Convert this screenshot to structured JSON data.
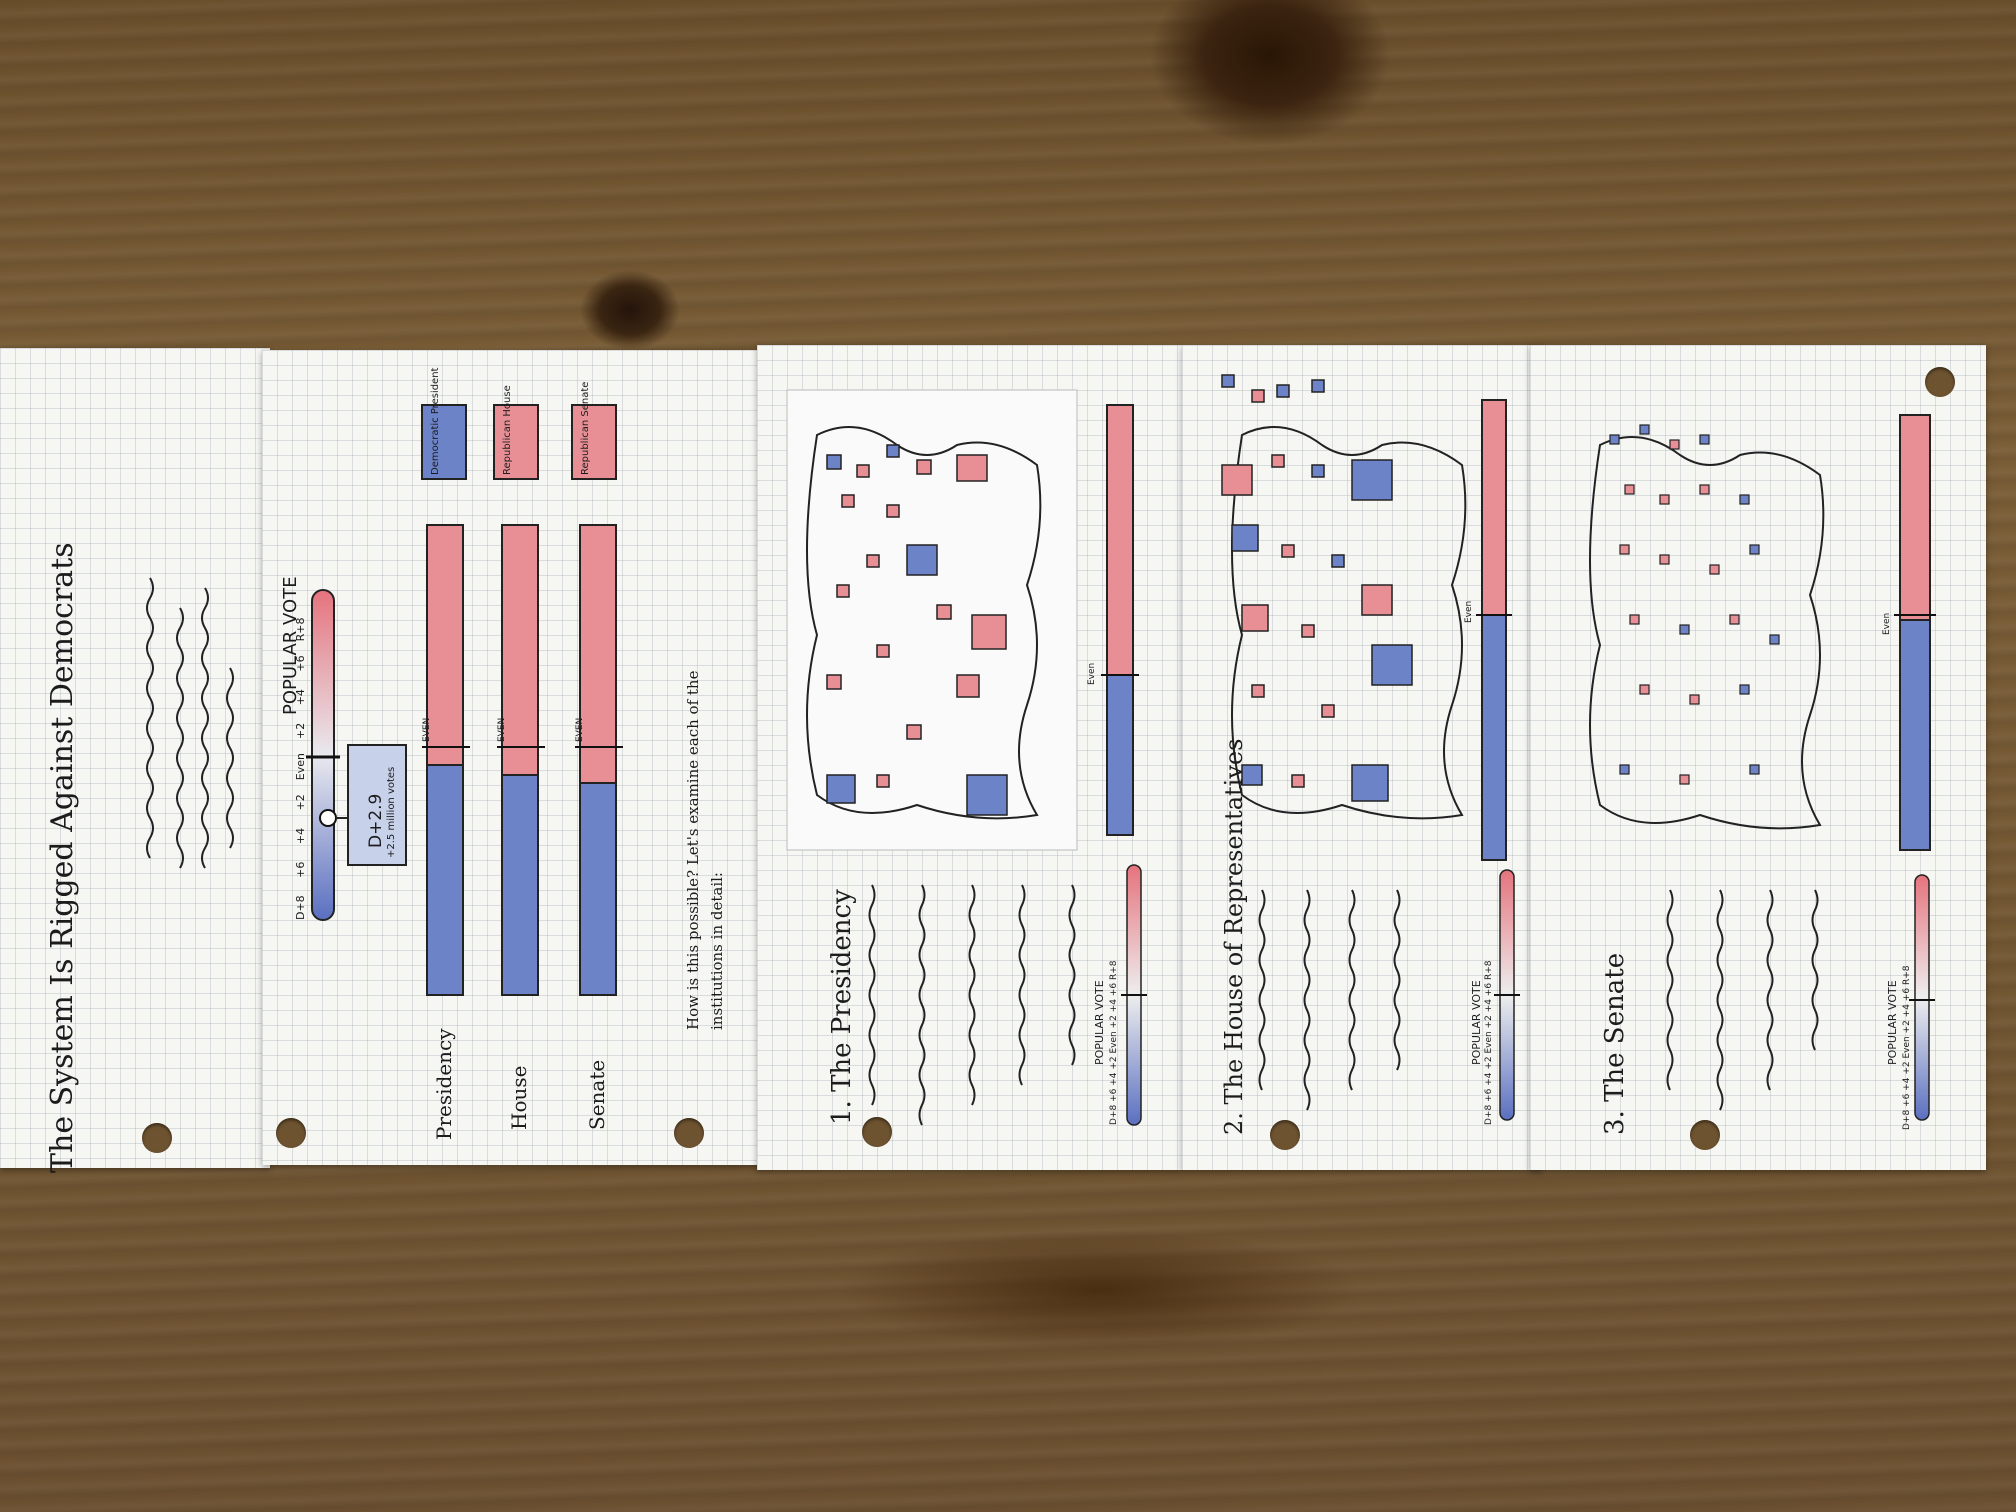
{
  "page": {
    "title": "The System Is Rigged Against Democrats",
    "popular_vote_label": "POPULAR VOTE",
    "scale_ticks": [
      "D+8",
      "+6",
      "+4",
      "+2",
      "Even",
      "+2",
      "+4",
      "+6",
      "R+8"
    ],
    "callout_main": "D+2.9",
    "callout_sub": "+2.5 million votes",
    "rows": [
      {
        "label": "Presidency",
        "legend": "Democratic President"
      },
      {
        "label": "House",
        "legend": "Republican House"
      },
      {
        "label": "Senate",
        "legend": "Republican Senate"
      }
    ],
    "even_label": "EVEN",
    "question": "How is this possible? Let's examine each of the",
    "question_line2": "institutions in detail:"
  },
  "sections": [
    {
      "title": "1. The Presidency",
      "pv_label": "POPULAR VOTE",
      "pv_ticks": "D+8 +6 +4 +2 Even +2 +4 +6 R+8",
      "even_label": "Even"
    },
    {
      "title": "2. The House of Representatives",
      "pv_label": "POPULAR VOTE",
      "pv_ticks": "D+8 +6 +4 +2 Even +2 +4 +6 R+8",
      "even_label": "Even"
    },
    {
      "title": "3. The Senate",
      "pv_label": "POPULAR VOTE",
      "pv_ticks": "D+8 +6 +4 +2 Even +2 +4 +6 R+8",
      "even_label": "Even"
    }
  ],
  "colors": {
    "democrat": "#6d83c8",
    "republican": "#e88f96",
    "ink": "#1c1c1c"
  }
}
